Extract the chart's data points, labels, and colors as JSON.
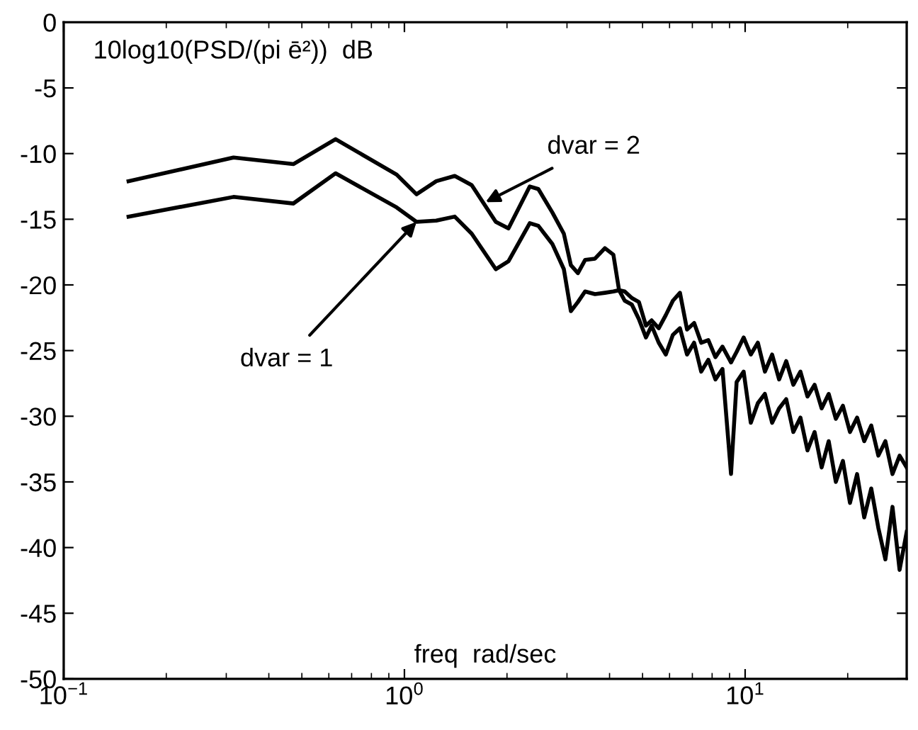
{
  "chart_data": {
    "type": "line",
    "ylabel": "10log10(PSD/(pi ē²))  dB",
    "xlabel": "freq  rad/sec",
    "log": "x",
    "xlim": [
      0.1,
      29.8
    ],
    "xticks": [
      {
        "value": 0.1,
        "label": "10$^{−1}$"
      },
      {
        "value": 1,
        "label": "10$^{0}$"
      },
      {
        "value": 10,
        "label": "10$^{1}$"
      }
    ],
    "ylim": [
      -50,
      0
    ],
    "yticks": [
      -50,
      -45,
      -40,
      -35,
      -30,
      -25,
      -20,
      -15,
      -10,
      -5,
      0
    ],
    "grid": false,
    "legend": false,
    "marker": "none",
    "line_style": "solid",
    "x": [
      0.155,
      0.315,
      0.472,
      0.628,
      0.949,
      1.085,
      1.24,
      1.405,
      1.576,
      1.854,
      2.02,
      2.333,
      2.472,
      2.72,
      2.937,
      3.08,
      3.23,
      3.39,
      3.625,
      3.876,
      4.105,
      4.265,
      4.432,
      4.65,
      4.877,
      5.116,
      5.316,
      5.577,
      5.85,
      6.137,
      6.437,
      6.753,
      7.085,
      7.43,
      7.797,
      8.18,
      8.58,
      9.09,
      9.44,
      9.9,
      10.39,
      10.9,
      11.43,
      12.0,
      12.58,
      13.2,
      13.85,
      14.53,
      15.24,
      15.99,
      16.77,
      17.59,
      18.46,
      19.36,
      20.31,
      21.31,
      22.36,
      23.45,
      24.6,
      25.8,
      27.07,
      28.4,
      29.8
    ],
    "series": [
      {
        "color": "#000000",
        "values": [
          -12.1,
          -10.3,
          -10.8,
          -8.9,
          -11.6,
          -13.1,
          -12.1,
          -11.7,
          -12.4,
          -15.2,
          -15.7,
          -12.5,
          -12.7,
          -14.5,
          -16.1,
          -18.5,
          -19.1,
          -18.1,
          -18.0,
          -17.2,
          -17.7,
          -20.4,
          -20.5,
          -21.0,
          -21.3,
          -23.1,
          -22.7,
          -23.3,
          -22.3,
          -21.2,
          -20.6,
          -23.4,
          -22.9,
          -24.4,
          -24.2,
          -25.5,
          -24.7,
          -25.9,
          -25.1,
          -24.0,
          -25.3,
          -24.4,
          -26.6,
          -25.3,
          -27.2,
          -25.8,
          -27.6,
          -26.6,
          -28.5,
          -27.6,
          -29.4,
          -28.3,
          -30.2,
          -29.2,
          -31.2,
          -30.1,
          -31.9,
          -30.7,
          -33.0,
          -31.9,
          -34.4,
          -33.0,
          -33.9
        ]
      },
      {
        "color": "#000000",
        "values": [
          -14.8,
          -13.3,
          -13.8,
          -11.5,
          -14.1,
          -15.2,
          -15.1,
          -14.8,
          -16.1,
          -18.8,
          -18.2,
          -15.3,
          -15.5,
          -16.9,
          -18.8,
          -22.0,
          -21.3,
          -20.5,
          -20.7,
          -20.6,
          -20.5,
          -20.4,
          -21.2,
          -21.5,
          -22.6,
          -24.0,
          -23.1,
          -24.4,
          -25.3,
          -23.8,
          -23.3,
          -25.3,
          -24.4,
          -26.6,
          -25.7,
          -27.2,
          -26.4,
          -34.4,
          -27.4,
          -26.6,
          -30.5,
          -29.0,
          -28.3,
          -30.5,
          -29.4,
          -28.7,
          -31.2,
          -30.1,
          -32.6,
          -31.2,
          -33.9,
          -31.9,
          -35.0,
          -33.4,
          -36.6,
          -34.4,
          -37.7,
          -35.5,
          -38.5,
          -40.9,
          -36.9,
          -41.7,
          -38.8
        ]
      }
    ],
    "annotations": [
      {
        "text": "dvar = 2",
        "x": 1.73,
        "y": -13.7
      },
      {
        "text": "dvar = 1",
        "x": 1.085,
        "y": -15.2
      }
    ]
  }
}
